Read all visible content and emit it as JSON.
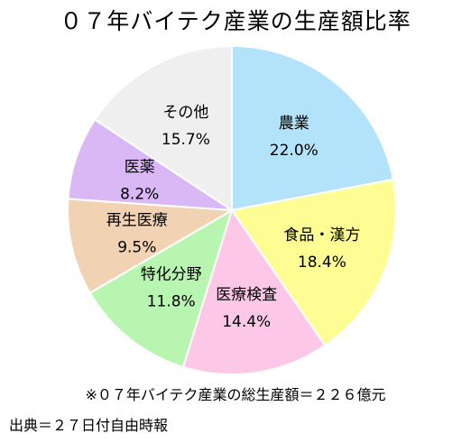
{
  "chart_data": {
    "type": "pie",
    "title": "０７年バイテク産業の生産額比率",
    "slices": [
      {
        "name": "農業",
        "value": 22.0,
        "label": "22.0%",
        "color": "#b3e3fb"
      },
      {
        "name": "食品・漢方",
        "value": 18.4,
        "label": "18.4%",
        "color": "#fdfd93"
      },
      {
        "name": "医療検査",
        "value": 14.4,
        "label": "14.4%",
        "color": "#fdc8e8"
      },
      {
        "name": "特化分野",
        "value": 11.8,
        "label": "11.8%",
        "color": "#b8f5b0"
      },
      {
        "name": "再生医療",
        "value": 9.5,
        "label": "9.5%",
        "color": "#f1d2b3"
      },
      {
        "name": "医薬",
        "value": 8.2,
        "label": "8.2%",
        "color": "#d9b8f5"
      },
      {
        "name": "その他",
        "value": 15.7,
        "label": "15.7%",
        "color": "#efefef"
      }
    ],
    "start_angle_deg": 0,
    "direction": "clockwise",
    "legend": "none"
  },
  "footnote": "※０７年バイテク産業の総生産額＝２２６億元",
  "source": "出典＝２７日付自由時報"
}
